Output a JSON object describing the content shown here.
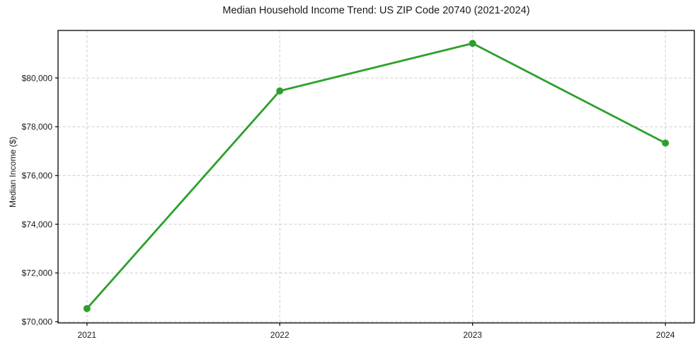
{
  "chart_data": {
    "type": "line",
    "title": "Median Household Income Trend: US ZIP Code 20740 (2021-2024)",
    "xlabel": "",
    "ylabel": "Median Income ($)",
    "categories": [
      "2021",
      "2022",
      "2023",
      "2024"
    ],
    "series": [
      {
        "name": "Median household income",
        "values": [
          70540,
          79470,
          81420,
          77330
        ]
      }
    ],
    "ylim": [
      69950,
      81950
    ],
    "yticks": [
      70000,
      72000,
      74000,
      76000,
      78000,
      80000
    ],
    "ytick_labels": [
      "$70,000",
      "$72,000",
      "$74,000",
      "$76,000",
      "$78,000",
      "$80,000"
    ],
    "grid": true,
    "grid_style": "dashed",
    "legend": "none",
    "colors": {
      "line": "#2ca02c",
      "marker": "#2ca02c",
      "grid": "#cdcdcd",
      "spine": "#000000",
      "text": "#1a1a1a",
      "background": "#ffffff"
    }
  }
}
